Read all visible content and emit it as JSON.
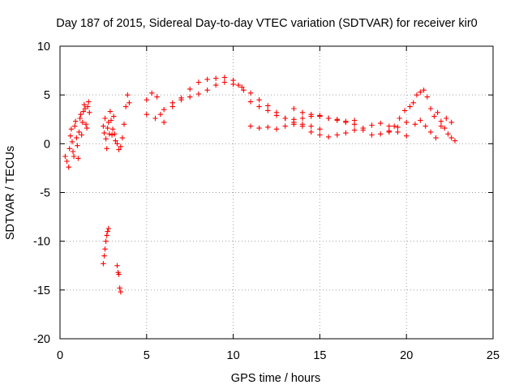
{
  "chart_data": {
    "type": "scatter",
    "title": "Day 187 of 2015, Sidereal Day-to-day VTEC variation (SDTVAR) for receiver kir0",
    "xlabel": "GPS time / hours",
    "ylabel": "SDTVAR / TECUs",
    "xlim": [
      0,
      25
    ],
    "ylim": [
      -20,
      10
    ],
    "xticks": [
      "0",
      "5",
      "10",
      "15",
      "20",
      "25"
    ],
    "yticks": [
      "-20",
      "-15",
      "-10",
      "-5",
      "0",
      "5",
      "10"
    ],
    "grid": true,
    "marker": "plus",
    "color": "#ff0000",
    "series": [
      {
        "name": "SDTVAR",
        "x": [
          0.3,
          0.4,
          0.5,
          0.55,
          0.6,
          0.65,
          0.7,
          0.75,
          0.8,
          0.85,
          0.9,
          0.95,
          1.0,
          1.05,
          1.1,
          1.15,
          1.2,
          1.25,
          1.3,
          1.35,
          1.4,
          1.45,
          1.5,
          1.55,
          1.6,
          1.65,
          1.7,
          2.5,
          2.55,
          2.6,
          2.65,
          2.7,
          2.75,
          2.8,
          2.85,
          2.9,
          2.95,
          3.0,
          3.05,
          3.1,
          3.15,
          3.2,
          3.3,
          3.4,
          3.5,
          3.6,
          3.7,
          3.8,
          3.9,
          4.0,
          2.5,
          2.55,
          2.6,
          2.65,
          2.7,
          2.75,
          2.8,
          3.3,
          3.35,
          3.4,
          3.45,
          3.5,
          5.0,
          5.3,
          5.6,
          5.8,
          6.0,
          6.5,
          7.0,
          7.5,
          8.0,
          8.5,
          9.0,
          9.5,
          10.0,
          10.3,
          10.6,
          11.0,
          11.5,
          12.0,
          12.5,
          13.0,
          13.5,
          14.0,
          14.5,
          15.0,
          15.5,
          16.0,
          16.5,
          17.0,
          5.0,
          5.5,
          6.0,
          6.5,
          7.0,
          7.5,
          8.0,
          8.5,
          9.0,
          9.5,
          10.0,
          10.5,
          11.0,
          11.5,
          12.0,
          12.5,
          13.0,
          13.5,
          14.0,
          14.5,
          15.0,
          11.0,
          11.5,
          12.0,
          12.5,
          13.0,
          13.5,
          14.0,
          14.5,
          15.0,
          15.5,
          16.0,
          16.5,
          17.0,
          17.5,
          18.0,
          18.5,
          19.0,
          19.5,
          20.0,
          13.5,
          14.0,
          14.5,
          15.0,
          15.5,
          16.0,
          16.5,
          17.0,
          17.5,
          18.0,
          18.5,
          19.0,
          19.5,
          20.0,
          19.0,
          19.3,
          19.6,
          19.9,
          20.2,
          20.4,
          20.6,
          20.8,
          21.0,
          21.2,
          21.4,
          21.6,
          21.8,
          22.0,
          22.2,
          22.4,
          22.6,
          22.8,
          20.5,
          20.8,
          21.1,
          21.4,
          21.7,
          22.0,
          22.3,
          22.6
        ],
        "y": [
          -1.3,
          -1.8,
          -2.4,
          -0.5,
          0.8,
          1.5,
          0.2,
          -0.8,
          -1.3,
          1.8,
          2.3,
          0.6,
          -0.2,
          -1.5,
          1.2,
          2.6,
          3.0,
          0.9,
          2.2,
          3.3,
          4.0,
          3.6,
          2.0,
          1.6,
          3.8,
          4.3,
          3.2,
          1.8,
          1.1,
          2.6,
          0.5,
          -0.5,
          1.6,
          2.2,
          1.0,
          3.3,
          2.4,
          0.9,
          1.5,
          2.8,
          1.0,
          0.3,
          0.0,
          -0.6,
          -0.3,
          0.6,
          2.0,
          3.8,
          5.0,
          4.2,
          -12.3,
          -11.5,
          -10.8,
          -10.0,
          -9.4,
          -9.0,
          -8.7,
          -12.5,
          -13.2,
          -13.4,
          -14.8,
          -15.2,
          4.5,
          5.2,
          4.8,
          3.0,
          2.2,
          3.8,
          4.7,
          5.6,
          6.3,
          6.6,
          6.7,
          6.8,
          6.5,
          6.0,
          5.5,
          4.3,
          3.8,
          3.4,
          2.9,
          2.6,
          2.5,
          2.6,
          2.8,
          2.9,
          2.6,
          2.4,
          2.2,
          2.4,
          3.0,
          2.6,
          3.5,
          4.2,
          4.5,
          4.8,
          5.1,
          5.5,
          6.0,
          6.3,
          6.1,
          5.8,
          5.2,
          4.5,
          3.9,
          3.2,
          2.6,
          2.2,
          2.0,
          1.8,
          1.5,
          1.8,
          1.6,
          1.7,
          1.5,
          1.8,
          2.0,
          1.8,
          1.2,
          0.9,
          0.7,
          0.9,
          1.1,
          1.4,
          1.6,
          1.9,
          2.1,
          1.8,
          1.2,
          0.8,
          3.6,
          3.2,
          3.0,
          2.8,
          2.6,
          2.5,
          2.3,
          2.0,
          1.4,
          0.9,
          1.0,
          1.3,
          1.7,
          2.2,
          1.2,
          1.8,
          2.6,
          3.4,
          3.8,
          4.2,
          5.0,
          5.3,
          5.5,
          4.8,
          3.6,
          2.8,
          3.2,
          2.3,
          1.6,
          1.0,
          0.6,
          0.3,
          2.0,
          2.4,
          1.8,
          1.2,
          0.6,
          1.8,
          2.6,
          2.2
        ]
      }
    ]
  }
}
